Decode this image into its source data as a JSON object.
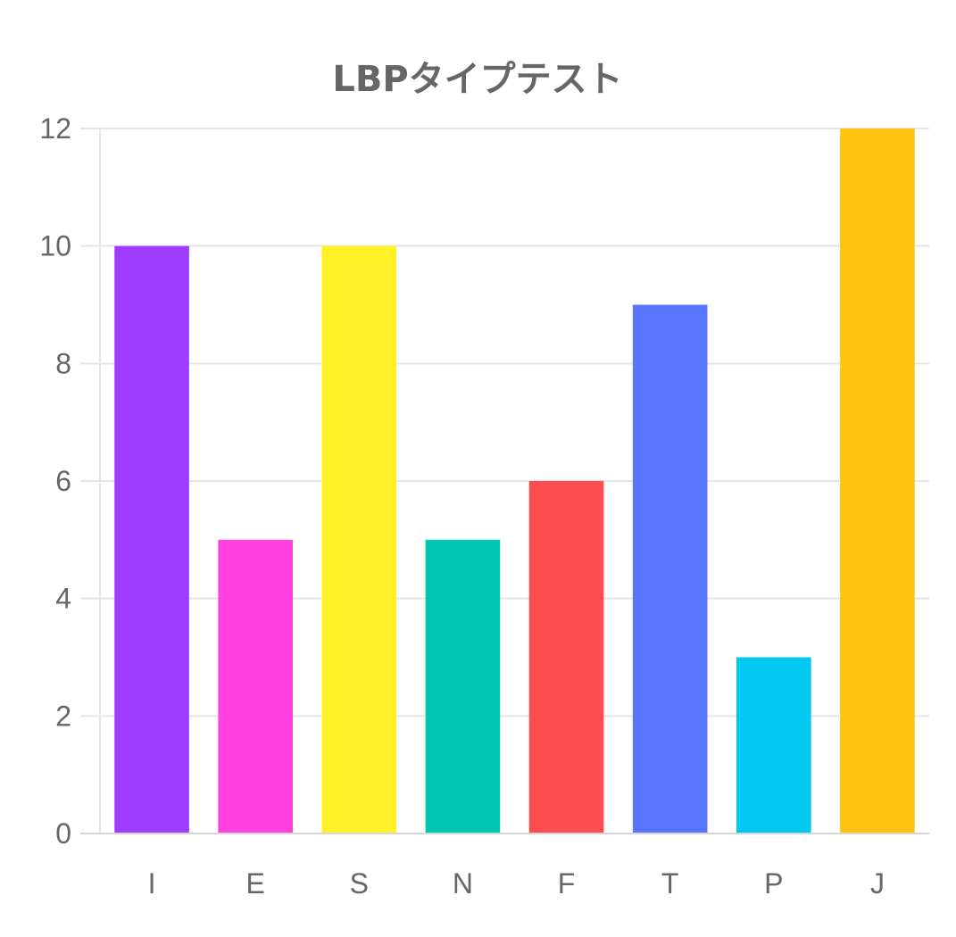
{
  "chart_data": {
    "type": "bar",
    "title": "LBPタイプテスト",
    "xlabel": "",
    "ylabel": "",
    "categories": [
      "I",
      "E",
      "S",
      "N",
      "F",
      "T",
      "P",
      "J"
    ],
    "values": [
      10,
      5,
      10,
      5,
      6,
      9,
      3,
      12
    ],
    "colors": [
      "#9f3cff",
      "#ff42df",
      "#fff126",
      "#00c8b0",
      "#ff4d4f",
      "#5975ff",
      "#00c8f0",
      "#ffc20f"
    ],
    "ylim": [
      0,
      12
    ],
    "yticks": [
      0,
      2,
      4,
      6,
      8,
      10,
      12
    ],
    "grid": true,
    "legend": "none"
  }
}
